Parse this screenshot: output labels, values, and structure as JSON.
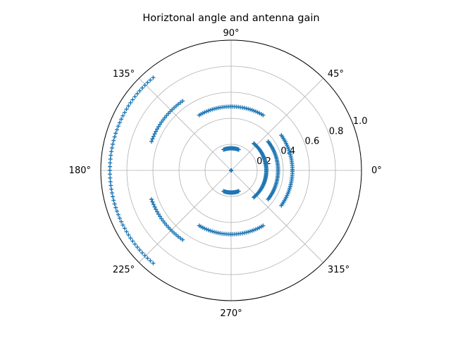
{
  "chart_data": {
    "type": "scatter",
    "projection": "polar",
    "title": "Horiztonal angle and antenna gain",
    "marker": "+",
    "color": "#1f77b4",
    "rlim": [
      0,
      1.0
    ],
    "r_tick_labels": [
      "0.2",
      "0.4",
      "0.6",
      "0.8",
      "1.0"
    ],
    "r_ticks": [
      0.2,
      0.4,
      0.6,
      0.8,
      1.0
    ],
    "theta_tick_labels": [
      "0°",
      "45°",
      "90°",
      "135°",
      "180°",
      "225°",
      "270°",
      "315°"
    ],
    "theta_ticks_deg": [
      0,
      45,
      90,
      135,
      180,
      225,
      270,
      315
    ],
    "grid": true,
    "series": [
      {
        "theta_range_deg": [
          -35,
          35
        ],
        "r": 0.47
      },
      {
        "theta_range_deg": [
          -38,
          38
        ],
        "r": 0.36
      },
      {
        "theta_range_deg": [
          -50,
          50
        ],
        "r": 0.27
      },
      {
        "theta_range_deg": [
          70,
          110
        ],
        "r": 0.17
      },
      {
        "theta_range_deg": [
          250,
          290
        ],
        "r": 0.17
      },
      {
        "theta_range_deg": [
          60,
          120
        ],
        "r": 0.49
      },
      {
        "theta_range_deg": [
          240,
          300
        ],
        "r": 0.49
      },
      {
        "theta_range_deg": [
          125,
          160
        ],
        "r": 0.65
      },
      {
        "theta_range_deg": [
          200,
          235
        ],
        "r": 0.65
      },
      {
        "theta_range_deg": [
          130,
          230
        ],
        "r": 0.93
      },
      {
        "theta_range_deg": [
          0,
          360
        ],
        "r": 0.0
      }
    ]
  }
}
